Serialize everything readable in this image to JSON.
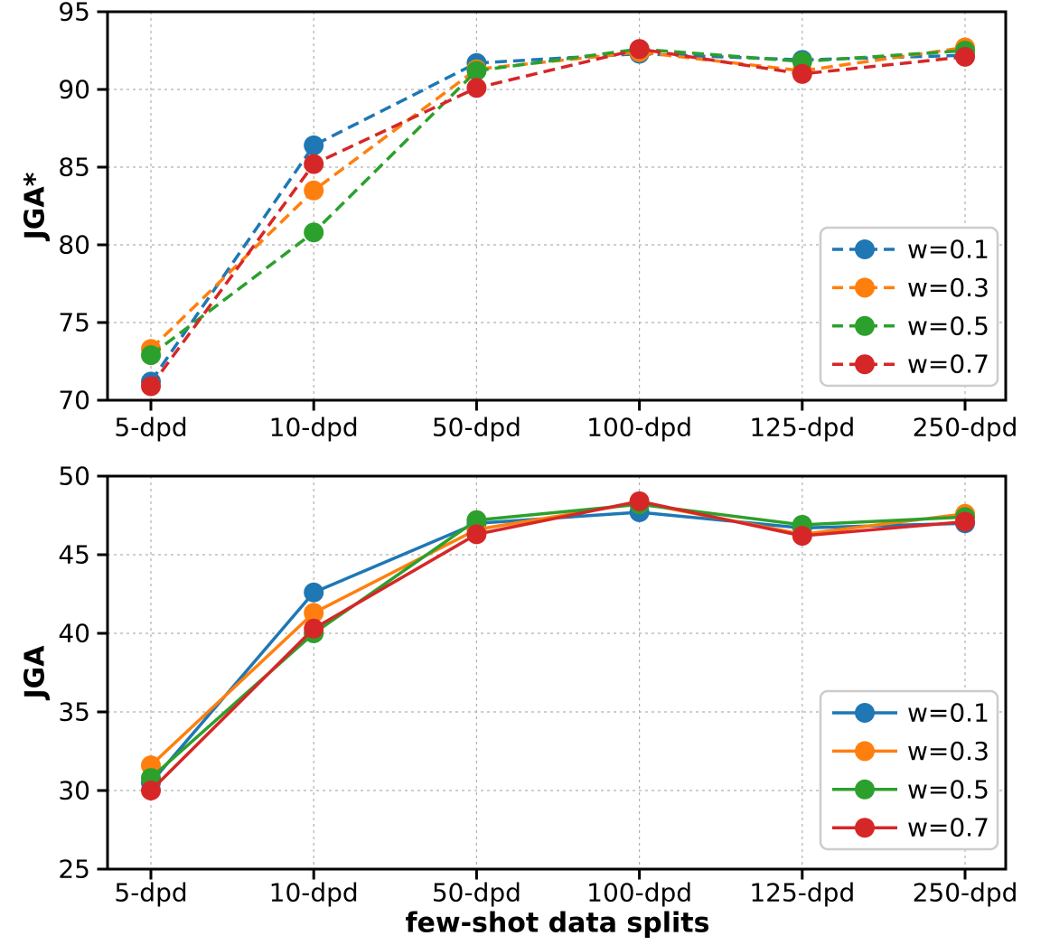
{
  "figure": {
    "background": "#ffffff"
  },
  "style": {
    "grid_color": "#b0b0b0",
    "spine_color": "#000000",
    "legend_border": "#cccccc",
    "text_color": "#000000",
    "series_colors": {
      "blue": "#1f77b4",
      "orange": "#ff7f0e",
      "green": "#2ca02c",
      "red": "#d62728"
    }
  },
  "chart_data": [
    {
      "type": "line",
      "title": "",
      "ylabel": "JGA*",
      "xlabel": "",
      "categories": [
        "5-dpd",
        "10-dpd",
        "50-dpd",
        "100-dpd",
        "125-dpd",
        "250-dpd"
      ],
      "ylim": [
        70,
        95
      ],
      "yticks": [
        70,
        75,
        80,
        85,
        90,
        95
      ],
      "grid": true,
      "line_style": "dashed",
      "legend_position": "lower right",
      "series": [
        {
          "name": "w=0.1",
          "color": "#1f77b4",
          "values": [
            71.2,
            86.4,
            91.7,
            92.3,
            91.9,
            92.2
          ]
        },
        {
          "name": "w=0.3",
          "color": "#ff7f0e",
          "values": [
            73.3,
            83.5,
            91.3,
            92.4,
            91.2,
            92.7
          ]
        },
        {
          "name": "w=0.5",
          "color": "#2ca02c",
          "values": [
            72.9,
            80.8,
            91.2,
            92.6,
            91.8,
            92.5
          ]
        },
        {
          "name": "w=0.7",
          "color": "#d62728",
          "values": [
            70.9,
            85.2,
            90.1,
            92.6,
            91.0,
            92.1
          ]
        }
      ]
    },
    {
      "type": "line",
      "title": "",
      "ylabel": "JGA",
      "xlabel": "few-shot data splits",
      "categories": [
        "5-dpd",
        "10-dpd",
        "50-dpd",
        "100-dpd",
        "125-dpd",
        "250-dpd"
      ],
      "ylim": [
        25,
        50
      ],
      "yticks": [
        25,
        30,
        35,
        40,
        45,
        50
      ],
      "grid": true,
      "line_style": "solid",
      "legend_position": "lower right",
      "series": [
        {
          "name": "w=0.1",
          "color": "#1f77b4",
          "values": [
            30.5,
            42.6,
            47.0,
            47.7,
            46.7,
            47.0
          ]
        },
        {
          "name": "w=0.3",
          "color": "#ff7f0e",
          "values": [
            31.6,
            41.3,
            46.6,
            48.3,
            46.3,
            47.6
          ]
        },
        {
          "name": "w=0.5",
          "color": "#2ca02c",
          "values": [
            30.8,
            40.0,
            47.2,
            48.2,
            46.9,
            47.4
          ]
        },
        {
          "name": "w=0.7",
          "color": "#d62728",
          "values": [
            30.0,
            40.3,
            46.3,
            48.4,
            46.2,
            47.1
          ]
        }
      ]
    }
  ]
}
